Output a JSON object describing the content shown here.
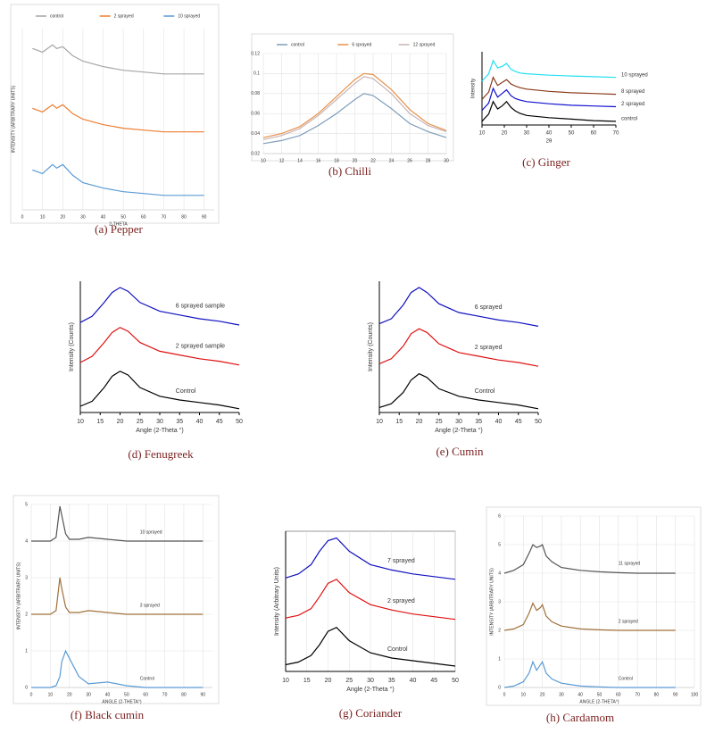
{
  "chart_data": [
    {
      "type": "line",
      "caption": "(a) Pepper",
      "xlabel": "2-THETA",
      "ylabel": "INTENSITY (ARBITRARY UNITS)",
      "legend": "top",
      "grid": true,
      "x": [
        5,
        10,
        15,
        17,
        20,
        25,
        30,
        40,
        50,
        60,
        70,
        80,
        90
      ],
      "xlim": [
        0,
        95
      ],
      "xticks": [
        0,
        10,
        20,
        30,
        40,
        50,
        60,
        70,
        80,
        90
      ],
      "ylim": [
        0,
        10
      ],
      "series": [
        {
          "name": "control",
          "color": "#a5a5a5",
          "values": [
            8.9,
            8.7,
            9.1,
            8.9,
            9.0,
            8.5,
            8.2,
            7.9,
            7.7,
            7.6,
            7.5,
            7.5,
            7.5
          ]
        },
        {
          "name": "2 sprayed",
          "color": "#ed7d31",
          "values": [
            5.6,
            5.4,
            5.8,
            5.6,
            5.8,
            5.3,
            5.0,
            4.7,
            4.5,
            4.4,
            4.3,
            4.3,
            4.3
          ]
        },
        {
          "name": "10 sprayed",
          "color": "#5b9bd5",
          "values": [
            2.2,
            2.0,
            2.5,
            2.3,
            2.5,
            1.9,
            1.5,
            1.2,
            1.0,
            0.9,
            0.8,
            0.8,
            0.8
          ]
        }
      ]
    },
    {
      "type": "line",
      "caption": "(b) Chilli",
      "legend": "top",
      "grid": true,
      "x": [
        10,
        12,
        14,
        16,
        18,
        20,
        21,
        22,
        24,
        26,
        28,
        30
      ],
      "xlim": [
        10,
        30
      ],
      "xticks": [
        10,
        12,
        14,
        16,
        18,
        20,
        22,
        24,
        26,
        28,
        30
      ],
      "ylim": [
        0.02,
        0.12
      ],
      "yticks": [
        0.02,
        0.04,
        0.06,
        0.08,
        0.1,
        0.12
      ],
      "series": [
        {
          "name": "control",
          "color": "#7f9db9",
          "values": [
            0.03,
            0.033,
            0.038,
            0.048,
            0.06,
            0.074,
            0.08,
            0.078,
            0.065,
            0.05,
            0.042,
            0.036
          ]
        },
        {
          "name": "6 sprayed",
          "color": "#e8914a",
          "values": [
            0.036,
            0.04,
            0.047,
            0.06,
            0.077,
            0.094,
            0.1,
            0.099,
            0.084,
            0.064,
            0.05,
            0.043
          ]
        },
        {
          "name": "12 sprayed",
          "color": "#c8b4b4",
          "values": [
            0.034,
            0.038,
            0.045,
            0.058,
            0.074,
            0.09,
            0.097,
            0.095,
            0.08,
            0.06,
            0.048,
            0.042
          ]
        }
      ]
    },
    {
      "type": "line",
      "caption": "(c) Ginger",
      "xlabel": "2θ",
      "ylabel": "Intensity",
      "legend": "right",
      "grid": false,
      "x": [
        10,
        13,
        15,
        17,
        19,
        21,
        23,
        25,
        27,
        30,
        40,
        50,
        60,
        70
      ],
      "xlim": [
        10,
        70
      ],
      "xticks": [
        10,
        20,
        30,
        40,
        50,
        60,
        70
      ],
      "ylim": [
        0,
        10
      ],
      "series": [
        {
          "name": "control",
          "color": "#000000",
          "values": [
            0.5,
            1.5,
            3.2,
            2.2,
            2.6,
            3.2,
            2.4,
            1.9,
            1.6,
            1.3,
            1.0,
            0.8,
            0.6,
            0.5
          ]
        },
        {
          "name": "2 sprayed",
          "color": "#1010d0",
          "values": [
            2,
            3,
            5,
            3.8,
            4.3,
            4.8,
            4.0,
            3.6,
            3.4,
            3.2,
            2.9,
            2.7,
            2.6,
            2.5
          ]
        },
        {
          "name": "8 sprayed",
          "color": "#8b3a1a",
          "values": [
            3.5,
            4.5,
            6.5,
            5.4,
            5.8,
            6.2,
            5.6,
            5.3,
            5.1,
            4.9,
            4.6,
            4.4,
            4.3,
            4.2
          ]
        },
        {
          "name": "10 sprayed",
          "color": "#22e0f0",
          "values": [
            6,
            7,
            8.8,
            7.8,
            8.0,
            8.4,
            7.6,
            7.3,
            7.1,
            7.0,
            6.8,
            6.7,
            6.6,
            6.5
          ]
        }
      ]
    },
    {
      "type": "line",
      "caption": "(d) Fenugreek",
      "xlabel": "Angle (2-Theta °)",
      "ylabel": "Intensity (Counts)",
      "legend": "inline",
      "grid": false,
      "x": [
        10,
        13,
        16,
        18,
        20,
        22,
        25,
        30,
        35,
        40,
        45,
        50
      ],
      "xlim": [
        10,
        50
      ],
      "xticks": [
        10,
        15,
        20,
        25,
        30,
        35,
        40,
        45,
        50
      ],
      "ylim": [
        0,
        10.5
      ],
      "series": [
        {
          "name": "Control",
          "color": "#000000",
          "values": [
            0.5,
            0.9,
            2.0,
            2.9,
            3.3,
            3.0,
            2.0,
            1.3,
            1.0,
            0.8,
            0.6,
            0.3
          ]
        },
        {
          "name": "2 sprayed sample",
          "color": "#e01010",
          "values": [
            4.0,
            4.5,
            5.6,
            6.4,
            6.8,
            6.5,
            5.6,
            4.9,
            4.6,
            4.3,
            4.1,
            3.8
          ]
        },
        {
          "name": "6 sprayed sample",
          "color": "#1010c0",
          "values": [
            7.2,
            7.7,
            8.8,
            9.6,
            10,
            9.7,
            8.8,
            8.1,
            7.8,
            7.5,
            7.3,
            7.0
          ]
        }
      ]
    },
    {
      "type": "line",
      "caption": "(e) Cumin",
      "xlabel": "Angle (2-Theta °)",
      "ylabel": "Intensity (Counts)",
      "legend": "inline",
      "grid": false,
      "x": [
        10,
        13,
        16,
        18,
        20,
        22,
        25,
        30,
        35,
        40,
        45,
        50
      ],
      "xlim": [
        10,
        50
      ],
      "xticks": [
        10,
        15,
        20,
        25,
        30,
        35,
        40,
        45,
        50
      ],
      "ylim": [
        0,
        10.5
      ],
      "series": [
        {
          "name": "Control",
          "color": "#000000",
          "values": [
            0.4,
            0.7,
            1.6,
            2.6,
            3.1,
            2.8,
            1.9,
            1.3,
            1.0,
            0.8,
            0.6,
            0.3
          ]
        },
        {
          "name": "2 sprayed",
          "color": "#e01010",
          "values": [
            3.9,
            4.3,
            5.3,
            6.3,
            6.7,
            6.4,
            5.5,
            4.8,
            4.5,
            4.2,
            4.0,
            3.7
          ]
        },
        {
          "name": "6 sprayed",
          "color": "#1010c0",
          "values": [
            7.1,
            7.5,
            8.6,
            9.6,
            10,
            9.6,
            8.7,
            8.0,
            7.7,
            7.4,
            7.2,
            6.9
          ]
        }
      ]
    },
    {
      "type": "line",
      "caption": "(f) Black cumin",
      "xlabel": "ANGLE (2-THETA°)",
      "ylabel": "INTENSITY (ARBITRARY UNITS)",
      "legend": "inline",
      "grid": true,
      "x": [
        0,
        5,
        10,
        13,
        15,
        16,
        18,
        20,
        25,
        30,
        40,
        50,
        60,
        70,
        80,
        90
      ],
      "xlim": [
        0,
        95
      ],
      "xticks": [
        0,
        10,
        20,
        30,
        40,
        50,
        60,
        70,
        80,
        90
      ],
      "ylim": [
        0,
        5
      ],
      "yticks": [
        0,
        1,
        2,
        3,
        4,
        5
      ],
      "series": [
        {
          "name": "Control",
          "color": "#5b9bd5",
          "values": [
            0,
            0,
            0,
            0.05,
            0.3,
            0.7,
            1.0,
            0.8,
            0.3,
            0.1,
            0.15,
            0.05,
            0,
            0,
            0,
            0
          ]
        },
        {
          "name": "3 sprayed",
          "color": "#a0703a",
          "values": [
            2,
            2,
            2,
            2.1,
            3.0,
            2.7,
            2.2,
            2.05,
            2.05,
            2.1,
            2.05,
            2,
            2,
            2,
            2,
            2
          ]
        },
        {
          "name": "10 sprayed",
          "color": "#555555",
          "values": [
            4,
            4,
            4,
            4.1,
            4.95,
            4.7,
            4.2,
            4.05,
            4.05,
            4.1,
            4.05,
            4,
            4,
            4,
            4,
            4
          ]
        }
      ]
    },
    {
      "type": "line",
      "caption": "(g) Coriander",
      "xlabel": "Angle (2-Theta °)",
      "ylabel": "Intensity (Arbitrary Units)",
      "legend": "inline",
      "grid": true,
      "x": [
        10,
        13,
        16,
        18,
        20,
        22,
        25,
        30,
        35,
        40,
        45,
        50
      ],
      "xlim": [
        10,
        50
      ],
      "xticks": [
        10,
        15,
        20,
        25,
        30,
        35,
        40,
        45,
        50
      ],
      "ylim": [
        0,
        10.5
      ],
      "series": [
        {
          "name": "Control",
          "color": "#000000",
          "values": [
            0.5,
            0.7,
            1.2,
            2.0,
            3.0,
            3.3,
            2.3,
            1.4,
            1.0,
            0.8,
            0.6,
            0.4
          ]
        },
        {
          "name": "2 sprayed",
          "color": "#e01010",
          "values": [
            4.0,
            4.2,
            4.7,
            5.6,
            6.6,
            6.9,
            5.9,
            5.0,
            4.6,
            4.3,
            4.1,
            3.9
          ]
        },
        {
          "name": "7 sprayed",
          "color": "#1010c0",
          "values": [
            7.0,
            7.3,
            8.0,
            9.0,
            9.8,
            10,
            9.0,
            8.0,
            7.6,
            7.3,
            7.1,
            6.9
          ]
        }
      ]
    },
    {
      "type": "line",
      "caption": "(h) Cardamom",
      "xlabel": "ANGLE (2-THETA°)",
      "ylabel": "INTENSITY (ARBITRARY UNITS)",
      "legend": "inline",
      "grid": true,
      "x": [
        0,
        5,
        10,
        13,
        15,
        17,
        19,
        20,
        22,
        25,
        30,
        40,
        50,
        60,
        70,
        80,
        90
      ],
      "xlim": [
        0,
        100
      ],
      "xticks": [
        0,
        10,
        20,
        30,
        40,
        50,
        60,
        70,
        80,
        90,
        100
      ],
      "ylim": [
        0,
        6
      ],
      "yticks": [
        0,
        1,
        2,
        3,
        4,
        5,
        6
      ],
      "series": [
        {
          "name": "Control",
          "color": "#5b9bd5",
          "values": [
            0,
            0.05,
            0.2,
            0.5,
            0.9,
            0.6,
            0.8,
            0.9,
            0.5,
            0.3,
            0.15,
            0.05,
            0.02,
            0,
            0,
            0,
            0
          ]
        },
        {
          "name": "2 sprayed",
          "color": "#a0703a",
          "values": [
            2,
            2.05,
            2.2,
            2.6,
            2.95,
            2.7,
            2.8,
            2.9,
            2.5,
            2.3,
            2.15,
            2.05,
            2.02,
            2,
            2,
            2,
            2
          ]
        },
        {
          "name": "11 sprayed",
          "color": "#555555",
          "values": [
            4,
            4.1,
            4.3,
            4.7,
            5.0,
            4.9,
            4.95,
            5.0,
            4.6,
            4.4,
            4.2,
            4.1,
            4.05,
            4.02,
            4,
            4,
            4
          ]
        }
      ]
    }
  ]
}
